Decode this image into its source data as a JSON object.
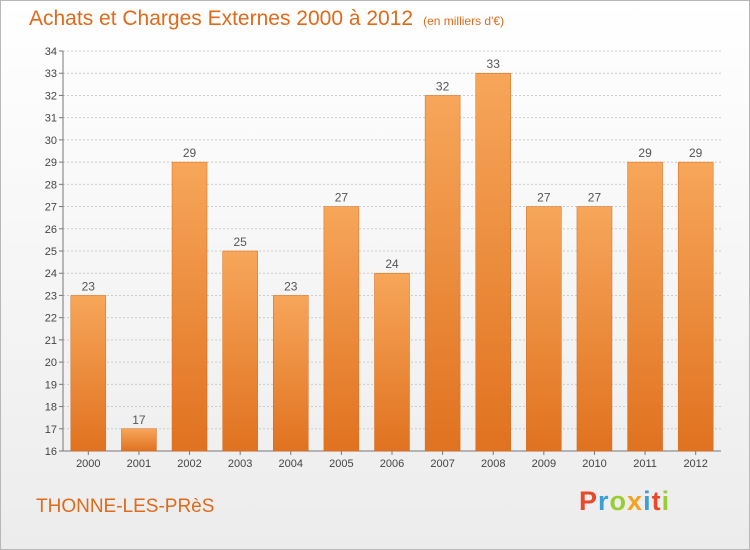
{
  "header": {
    "title": "Achats et Charges Externes 2000 à 2012",
    "unit": "(en milliers d'€)"
  },
  "footer": {
    "town": "THONNE-LES-PRèS",
    "brand_letters": [
      "P",
      "r",
      "o",
      "x",
      "i",
      "t",
      "i"
    ],
    "brand_colors": [
      "#e8492c",
      "#3aa0d8",
      "#9acd32",
      "#f7a21b",
      "#3aa0d8",
      "#e8492c",
      "#9acd32"
    ]
  },
  "colors": {
    "bar_top": "#f7a65a",
    "bar_bottom": "#e07220",
    "title": "#e06a1a",
    "grid": "#cccccc"
  },
  "chart_data": {
    "type": "bar",
    "title": "Achats et Charges Externes 2000 à 2012",
    "categories": [
      "2000",
      "2001",
      "2002",
      "2003",
      "2004",
      "2005",
      "2006",
      "2007",
      "2008",
      "2009",
      "2010",
      "2011",
      "2012"
    ],
    "values": [
      23,
      17,
      29,
      25,
      23,
      27,
      24,
      32,
      33,
      27,
      27,
      29,
      29
    ],
    "ylim": [
      16,
      34
    ],
    "yticks": [
      "16",
      "17",
      "18",
      "19",
      "20",
      "21",
      "22",
      "23",
      "24",
      "25",
      "26",
      "27",
      "28",
      "29",
      "30",
      "31",
      "32",
      "33",
      "34"
    ],
    "grid": true,
    "legend": "none",
    "xlabel": "",
    "ylabel": ""
  }
}
